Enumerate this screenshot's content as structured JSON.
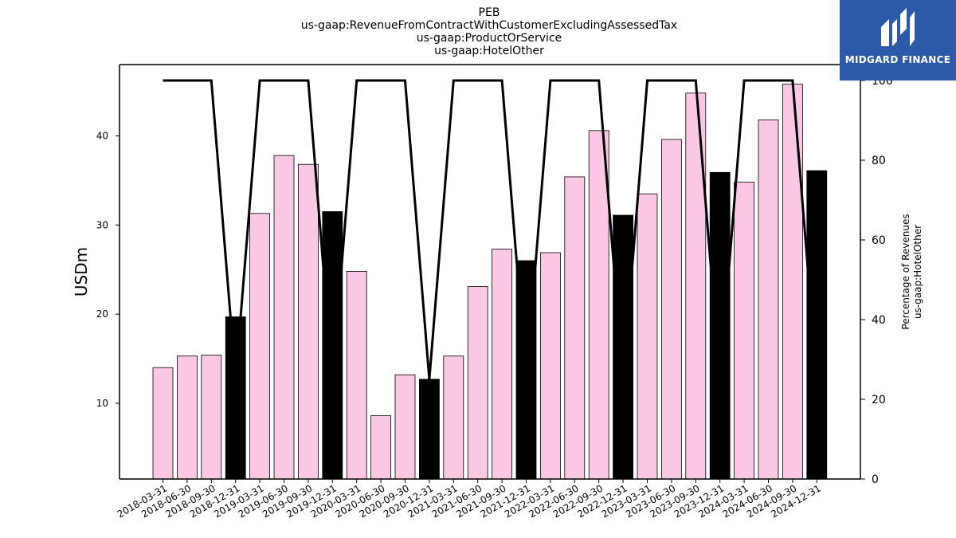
{
  "chart_data": {
    "type": "bar",
    "title_lines": [
      "PEB",
      "us-gaap:RevenueFromContractWithCustomerExcludingAssessedTax",
      "us-gaap:ProductOrService",
      "us-gaap:HotelOther"
    ],
    "ylabel": "USDm",
    "ylabel_right": [
      "Percentage of Revenues",
      "us-gaap:HotelOther"
    ],
    "categories": [
      "2018-03-31",
      "2018-06-30",
      "2018-09-30",
      "2018-12-31",
      "2019-03-31",
      "2019-06-30",
      "2019-09-30",
      "2019-12-31",
      "2020-03-31",
      "2020-06-30",
      "2020-09-30",
      "2020-12-31",
      "2021-03-31",
      "2021-06-30",
      "2021-09-30",
      "2021-12-31",
      "2022-03-31",
      "2022-06-30",
      "2022-09-30",
      "2022-12-31",
      "2023-03-31",
      "2023-06-30",
      "2023-09-30",
      "2023-12-31",
      "2024-03-31",
      "2024-06-30",
      "2024-09-30",
      "2024-12-31"
    ],
    "values": [
      14.0,
      15.3,
      15.4,
      19.7,
      31.3,
      37.8,
      36.8,
      31.5,
      24.8,
      8.6,
      13.2,
      12.7,
      15.3,
      23.1,
      27.3,
      26.0,
      26.9,
      35.4,
      40.6,
      31.1,
      33.5,
      39.6,
      44.8,
      35.9,
      34.8,
      41.8,
      45.8,
      36.1
    ],
    "bar_kind": [
      "quarter",
      "quarter",
      "quarter",
      "annual",
      "quarter",
      "quarter",
      "quarter",
      "annual",
      "quarter",
      "quarter",
      "quarter",
      "annual",
      "quarter",
      "quarter",
      "quarter",
      "annual",
      "quarter",
      "quarter",
      "quarter",
      "annual",
      "quarter",
      "quarter",
      "quarter",
      "annual",
      "quarter",
      "quarter",
      "quarter",
      "annual"
    ],
    "percentage_series": [
      100,
      100,
      100,
      25,
      100,
      100,
      100,
      25,
      100,
      100,
      100,
      25,
      100,
      100,
      100,
      25,
      100,
      100,
      100,
      25,
      100,
      100,
      100,
      25,
      100,
      100,
      100,
      25
    ],
    "ylim": [
      1.5,
      48
    ],
    "yticks": [
      10,
      20,
      30,
      40
    ],
    "ylim_right": [
      0,
      104
    ],
    "yticks_right": [
      0,
      20,
      40,
      60,
      80,
      100
    ],
    "colors": {
      "quarter_fill": "#fbc8e3",
      "annual_fill": "#000000",
      "bar_edge": "#000000",
      "line": "#000000"
    }
  },
  "logo": {
    "text": "MIDGARD FINANCE",
    "background": "#2c5aa8"
  }
}
